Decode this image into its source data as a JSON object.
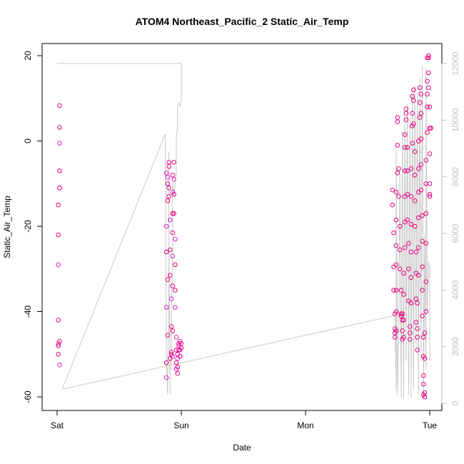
{
  "chart_data": {
    "type": "scatter",
    "title": "ATOM4 Northeast_Pacific_2 Static_Air_Temp",
    "xlabel": "Date",
    "ylabel": "Static_Air_Temp",
    "x_ticks": [
      "Sat",
      "Sun",
      "Mon",
      "Tue"
    ],
    "xlim": [
      "Sat",
      "Tue"
    ],
    "ylim": [
      -60,
      20
    ],
    "y_ticks": [
      -60,
      -40,
      -20,
      0,
      20
    ],
    "y2_ticks": [
      0,
      2000,
      4000,
      6000,
      8000,
      10000,
      12000
    ],
    "ylim2": [
      0,
      12000
    ],
    "grid": false,
    "colors": {
      "points": "#e8007d",
      "points_alt": "#e020c8",
      "altitude_line": "#c8c8c8"
    },
    "series": [
      {
        "type": "scatter",
        "axis": "left",
        "x_unit": "days_since_sat",
        "points": [
          [
            0.01,
            -47.5
          ],
          [
            0.01,
            -48
          ],
          [
            0.01,
            -50
          ],
          [
            0.02,
            -52.5
          ],
          [
            0.02,
            -47
          ],
          [
            0.01,
            -42
          ],
          [
            0.01,
            -29
          ],
          [
            0.01,
            -22
          ],
          [
            0.01,
            -15
          ],
          [
            0.02,
            -11
          ],
          [
            0.02,
            -11
          ],
          [
            0.02,
            -7
          ],
          [
            0.02,
            -0.5
          ],
          [
            0.02,
            3.2
          ],
          [
            0.02,
            8.3
          ],
          [
            0.88,
            -55.5
          ],
          [
            0.88,
            -52
          ],
          [
            0.89,
            -45.5
          ],
          [
            0.88,
            -39
          ],
          [
            0.89,
            -32.5
          ],
          [
            0.88,
            -26
          ],
          [
            0.88,
            -20
          ],
          [
            0.89,
            -14
          ],
          [
            0.89,
            -10
          ],
          [
            0.88,
            -7.5
          ],
          [
            0.9,
            -5
          ],
          [
            0.9,
            -6
          ],
          [
            0.89,
            -8.5
          ],
          [
            0.9,
            -11
          ],
          [
            0.9,
            -13
          ],
          [
            0.91,
            -18.5
          ],
          [
            0.91,
            -25.5
          ],
          [
            0.91,
            -31.5
          ],
          [
            0.92,
            -37
          ],
          [
            0.92,
            -43.5
          ],
          [
            0.92,
            -49.5
          ],
          [
            0.93,
            -50.5
          ],
          [
            0.93,
            -44.5
          ],
          [
            0.93,
            -34
          ],
          [
            0.93,
            -27
          ],
          [
            0.93,
            -21.5
          ],
          [
            0.93,
            -17
          ],
          [
            0.93,
            -12
          ],
          [
            0.93,
            -8
          ],
          [
            0.94,
            -5
          ],
          [
            0.94,
            -9
          ],
          [
            0.94,
            -12.5
          ],
          [
            0.94,
            -17
          ],
          [
            0.95,
            -23
          ],
          [
            0.95,
            -29
          ],
          [
            0.95,
            -35
          ],
          [
            0.95,
            -39
          ],
          [
            0.96,
            -49
          ],
          [
            0.96,
            -52
          ],
          [
            0.96,
            -53.5
          ],
          [
            0.97,
            -54.5
          ],
          [
            0.97,
            -53
          ],
          [
            0.97,
            -51
          ],
          [
            0.97,
            -50
          ],
          [
            0.98,
            -49
          ],
          [
            0.98,
            -48
          ],
          [
            0.98,
            -47.5
          ],
          [
            0.99,
            -47
          ],
          [
            0.99,
            -49
          ],
          [
            0.99,
            -50.5
          ],
          [
            1.0,
            -48.5
          ],
          [
            1.0,
            -47.5
          ],
          [
            0.91,
            -51
          ],
          [
            0.92,
            -50
          ],
          [
            0.96,
            -46
          ],
          [
            2.7,
            -11.5
          ],
          [
            2.7,
            -15
          ],
          [
            2.71,
            -21.5
          ],
          [
            2.71,
            -29.5
          ],
          [
            2.71,
            -35
          ],
          [
            2.72,
            -40.5
          ],
          [
            2.72,
            -44
          ],
          [
            2.72,
            -45
          ],
          [
            2.72,
            -46
          ],
          [
            2.73,
            -44.5
          ],
          [
            2.73,
            -40
          ],
          [
            2.73,
            -35
          ],
          [
            2.73,
            -29
          ],
          [
            2.73,
            -24.5
          ],
          [
            2.73,
            -18.5
          ],
          [
            2.73,
            -12
          ],
          [
            2.74,
            -7.5
          ],
          [
            2.74,
            -1
          ],
          [
            2.74,
            4.5
          ],
          [
            2.74,
            5.5
          ],
          [
            2.75,
            -6.5
          ],
          [
            2.75,
            -13
          ],
          [
            2.76,
            -20
          ],
          [
            2.76,
            -25.5
          ],
          [
            2.76,
            -30
          ],
          [
            2.77,
            -35
          ],
          [
            2.77,
            -40.5
          ],
          [
            2.77,
            -41
          ],
          [
            2.78,
            -40.5
          ],
          [
            2.78,
            -42
          ],
          [
            2.78,
            -44.5
          ],
          [
            2.78,
            -46.5
          ],
          [
            2.79,
            -46
          ],
          [
            2.79,
            -42
          ],
          [
            2.79,
            -36
          ],
          [
            2.79,
            -31
          ],
          [
            2.8,
            -25
          ],
          [
            2.8,
            -19
          ],
          [
            2.8,
            -13
          ],
          [
            2.8,
            -7
          ],
          [
            2.8,
            -1.5
          ],
          [
            2.8,
            1.5
          ],
          [
            2.81,
            6.5
          ],
          [
            2.81,
            7.5
          ],
          [
            2.81,
            5
          ],
          [
            2.82,
            -1.5
          ],
          [
            2.82,
            -7
          ],
          [
            2.82,
            -12.5
          ],
          [
            2.82,
            -18.5
          ],
          [
            2.83,
            -24
          ],
          [
            2.83,
            -30
          ],
          [
            2.83,
            -37.5
          ],
          [
            2.84,
            -43.5
          ],
          [
            2.84,
            -46.5
          ],
          [
            2.84,
            -45
          ],
          [
            2.85,
            -38
          ],
          [
            2.85,
            -32
          ],
          [
            2.85,
            -26
          ],
          [
            2.85,
            -19.5
          ],
          [
            2.85,
            -13
          ],
          [
            2.85,
            -6.5
          ],
          [
            2.86,
            -0.5
          ],
          [
            2.86,
            3.5
          ],
          [
            2.86,
            6.5
          ],
          [
            2.86,
            10.5
          ],
          [
            2.87,
            12
          ],
          [
            2.87,
            9.5
          ],
          [
            2.87,
            4
          ],
          [
            2.88,
            -2.5
          ],
          [
            2.88,
            -8
          ],
          [
            2.88,
            -14
          ],
          [
            2.88,
            -20
          ],
          [
            2.89,
            -26
          ],
          [
            2.89,
            -31
          ],
          [
            2.89,
            -37
          ],
          [
            2.89,
            -42.5
          ],
          [
            2.9,
            -46
          ],
          [
            2.9,
            -49
          ],
          [
            2.9,
            -44
          ],
          [
            2.9,
            -38
          ],
          [
            2.91,
            -31.5
          ],
          [
            2.91,
            -25
          ],
          [
            2.91,
            -18
          ],
          [
            2.91,
            -12
          ],
          [
            2.91,
            -6.5
          ],
          [
            2.91,
            0
          ],
          [
            2.92,
            5.5
          ],
          [
            2.92,
            9
          ],
          [
            2.92,
            12.5
          ],
          [
            2.93,
            11
          ],
          [
            2.93,
            6.5
          ],
          [
            2.93,
            0.5
          ],
          [
            2.93,
            -5.5
          ],
          [
            2.93,
            -11.5
          ],
          [
            2.94,
            -17.5
          ],
          [
            2.94,
            -23.5
          ],
          [
            2.94,
            -29.5
          ],
          [
            2.94,
            -35
          ],
          [
            2.94,
            -41
          ],
          [
            2.95,
            -46
          ],
          [
            2.95,
            -50.5
          ],
          [
            2.95,
            -55
          ],
          [
            2.95,
            -57
          ],
          [
            2.95,
            -59.5
          ],
          [
            2.96,
            -60
          ],
          [
            2.96,
            -59
          ],
          [
            2.96,
            -51
          ],
          [
            2.96,
            -45
          ],
          [
            2.97,
            -40
          ],
          [
            2.97,
            -33
          ],
          [
            2.97,
            -24
          ],
          [
            2.97,
            -17
          ],
          [
            2.97,
            -10
          ],
          [
            2.97,
            -4.5
          ],
          [
            2.98,
            2
          ],
          [
            2.98,
            8
          ],
          [
            2.98,
            11
          ],
          [
            2.98,
            14
          ],
          [
            2.98,
            19.5
          ],
          [
            2.99,
            20
          ],
          [
            2.99,
            19.5
          ],
          [
            2.99,
            16
          ],
          [
            2.99,
            12.5
          ],
          [
            3.0,
            8
          ],
          [
            3.0,
            3
          ],
          [
            3.0,
            -3
          ],
          [
            3.0,
            -10
          ],
          [
            3.0,
            -12.5
          ],
          [
            3.0,
            -13
          ],
          [
            3.01,
            3
          ]
        ]
      },
      {
        "type": "line",
        "axis": "right",
        "name": "",
        "x_unit": "days_since_sat",
        "points": [
          [
            0.0,
            12000
          ],
          [
            1.0,
            12000
          ],
          [
            1.0,
            10700
          ],
          [
            0.99,
            10500
          ],
          [
            0.98,
            10600
          ],
          [
            0.97,
            10500
          ],
          [
            0.97,
            9800
          ],
          [
            0.96,
            9400
          ],
          [
            0.96,
            8200
          ],
          [
            0.94,
            7300
          ],
          [
            0.93,
            7800
          ],
          [
            0.93,
            5400
          ],
          [
            0.92,
            3200
          ],
          [
            0.92,
            1800
          ],
          [
            0.91,
            1000
          ],
          [
            0.91,
            300
          ],
          [
            0.9,
            6000
          ],
          [
            0.9,
            8900
          ],
          [
            0.9,
            3600
          ],
          [
            0.89,
            1200
          ],
          [
            0.89,
            300
          ],
          [
            0.88,
            1500
          ],
          [
            0.87,
            9500
          ],
          [
            0.04,
            500
          ],
          [
            2.72,
            3100
          ],
          [
            2.73,
            500
          ],
          [
            2.73,
            9000
          ],
          [
            2.74,
            300
          ],
          [
            2.75,
            2500
          ],
          [
            2.76,
            8200
          ],
          [
            2.77,
            200
          ],
          [
            2.78,
            9600
          ],
          [
            2.79,
            200
          ],
          [
            2.8,
            10100
          ],
          [
            2.81,
            1500
          ],
          [
            2.82,
            10600
          ],
          [
            2.83,
            300
          ],
          [
            2.84,
            10100
          ],
          [
            2.85,
            200
          ],
          [
            2.86,
            11000
          ],
          [
            2.87,
            500
          ],
          [
            2.88,
            11200
          ],
          [
            2.89,
            2000
          ],
          [
            2.9,
            11000
          ],
          [
            2.91,
            300
          ],
          [
            2.92,
            11500
          ],
          [
            2.93,
            1500
          ],
          [
            2.94,
            11900
          ],
          [
            2.95,
            1500
          ],
          [
            2.95,
            200
          ],
          [
            2.96,
            6000
          ],
          [
            2.97,
            1200
          ],
          [
            2.97,
            11800
          ],
          [
            2.98,
            3300
          ],
          [
            2.99,
            5000
          ],
          [
            3.0,
            4800
          ],
          [
            3.0,
            1500
          ]
        ]
      }
    ]
  }
}
